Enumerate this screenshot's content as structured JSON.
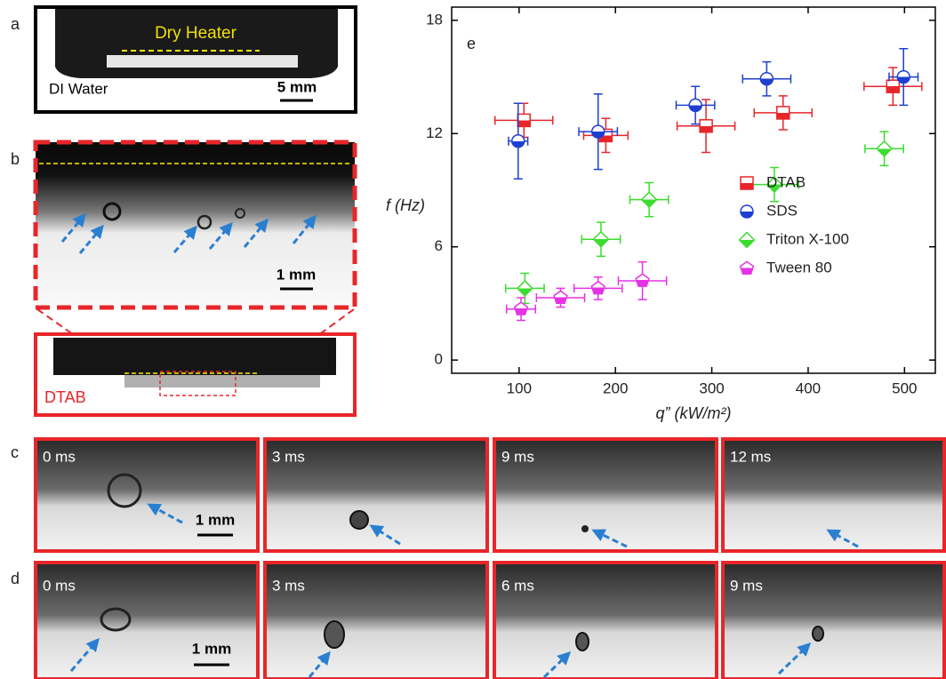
{
  "figure": {
    "panel_labels": [
      "a",
      "b",
      "c",
      "d"
    ],
    "a": {
      "heater": "Dry Heater",
      "fluid": "DI Water",
      "scale": "5 mm"
    },
    "b": {
      "scale": "1 mm",
      "surfactant": "DTAB"
    },
    "c": {
      "times": [
        "0 ms",
        "3 ms",
        "9 ms",
        "12 ms"
      ],
      "scale": "1 mm"
    },
    "d": {
      "times": [
        "0 ms",
        "3 ms",
        "6 ms",
        "9 ms"
      ],
      "scale": "1 mm"
    }
  },
  "chart_data": {
    "type": "scatter",
    "panel_label": "e",
    "x_label": "q” (kW/m²)",
    "y_label": "f (Hz)",
    "xlim": [
      30,
      532
    ],
    "ylim": [
      -0.7,
      18.7
    ],
    "xticks": [
      100,
      200,
      300,
      400,
      500
    ],
    "yticks": [
      0,
      6,
      12,
      18
    ],
    "legend": "center right",
    "series": [
      {
        "name": "DTAB",
        "color": "#e8262a",
        "marker": "square",
        "x": [
          105,
          190,
          294,
          374,
          488
        ],
        "values": [
          12.7,
          11.9,
          12.4,
          13.1,
          14.5
        ],
        "xerr": [
          30,
          23,
          30,
          30,
          30
        ],
        "yerr": [
          0.9,
          0.9,
          1.4,
          0.9,
          1.0
        ]
      },
      {
        "name": "SDS",
        "color": "#1f3fd0",
        "marker": "circle",
        "x": [
          99,
          182,
          283,
          357,
          499
        ],
        "values": [
          11.6,
          12.1,
          13.5,
          14.9,
          15.0
        ],
        "xerr": [
          10,
          20,
          20,
          25,
          15
        ],
        "yerr": [
          2.0,
          2.0,
          1.0,
          0.9,
          1.5
        ]
      },
      {
        "name": "Triton X-100",
        "color": "#3bdc2f",
        "marker": "diamond",
        "x": [
          106,
          185,
          235,
          365,
          479
        ],
        "values": [
          3.8,
          6.4,
          8.5,
          9.3,
          11.2
        ],
        "xerr": [
          20,
          20,
          20,
          25,
          20
        ],
        "yerr": [
          0.8,
          0.9,
          0.9,
          0.9,
          0.9
        ]
      },
      {
        "name": "Tween 80",
        "color": "#e632e6",
        "marker": "pentagon",
        "x": [
          102,
          143,
          182,
          228
        ],
        "values": [
          2.7,
          3.3,
          3.8,
          4.2
        ],
        "xerr": [
          15,
          25,
          25,
          25
        ],
        "yerr": [
          0.6,
          0.5,
          0.6,
          1.0
        ]
      }
    ]
  }
}
